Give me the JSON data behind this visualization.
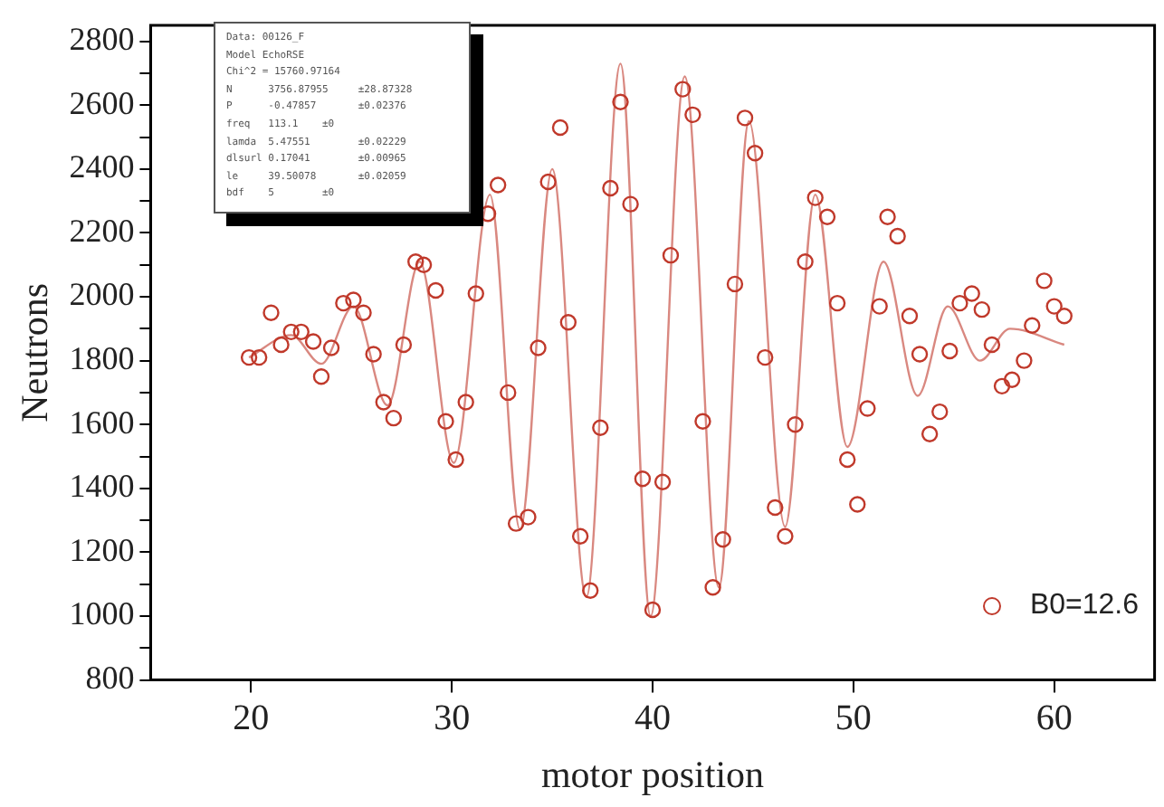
{
  "chart_data": {
    "type": "scatter",
    "xlabel": "motor position",
    "ylabel": "Neutrons",
    "xlim": [
      15,
      65
    ],
    "ylim": [
      800,
      2850
    ],
    "xticks": [
      20,
      30,
      40,
      50,
      60
    ],
    "yticks": [
      800,
      {
        "value": 900,
        "label": null
      },
      1000,
      {
        "value": 1100,
        "label": null
      },
      1200,
      {
        "value": 1300,
        "label": null
      },
      1400,
      {
        "value": 1500,
        "label": null
      },
      1600,
      {
        "value": 1700,
        "label": null
      },
      1800,
      {
        "value": 1900,
        "label": null
      },
      2000,
      {
        "value": 2100,
        "label": null
      },
      2200,
      {
        "value": 2300,
        "label": null
      },
      2400,
      {
        "value": 2500,
        "label": null
      },
      2600,
      {
        "value": 2700,
        "label": null
      },
      2800
    ],
    "grid": false,
    "legend": "bottom right",
    "annotations": [
      "Data: 00126_F",
      "Model EchoRSE",
      "Chi^2 = 15760.97164",
      "N      3756.87955     ±28.87328",
      "P      -0.47857       ±0.02376",
      "freq   113.1    ±0",
      "lamda  5.47551        ±0.02229",
      "dlsurl 0.17041        ±0.00965",
      "le     39.50078       ±0.02059",
      "bdf    5        ±0"
    ],
    "series": [
      {
        "name": "B0=12.6",
        "color": "#c0392b",
        "marker": "circle",
        "x": [
          19.9,
          20.4,
          21.0,
          21.5,
          22.0,
          22.5,
          23.1,
          23.5,
          24.0,
          24.6,
          25.1,
          25.6,
          26.1,
          26.6,
          27.1,
          27.6,
          28.2,
          28.6,
          29.2,
          29.7,
          30.2,
          30.7,
          31.2,
          31.8,
          32.3,
          32.8,
          33.2,
          33.8,
          34.3,
          34.8,
          35.4,
          35.8,
          36.4,
          36.9,
          37.4,
          37.9,
          38.4,
          38.9,
          39.5,
          40.0,
          40.5,
          40.9,
          41.5,
          42.0,
          42.5,
          43.0,
          43.5,
          44.1,
          44.6,
          45.1,
          45.6,
          46.1,
          46.6,
          47.1,
          47.6,
          48.1,
          48.7,
          49.2,
          49.7,
          50.2,
          50.7,
          51.3,
          51.7,
          52.2,
          52.8,
          53.3,
          53.8,
          54.3,
          54.8,
          55.3,
          55.9,
          56.4,
          56.9,
          57.4,
          57.9,
          58.5,
          58.9,
          59.5,
          60.0,
          60.5
        ],
        "values": [
          1810,
          1810,
          1950,
          1850,
          1890,
          1890,
          1860,
          1750,
          1840,
          1980,
          1990,
          1950,
          1820,
          1670,
          1620,
          1850,
          2110,
          2100,
          2020,
          1610,
          1490,
          1670,
          2010,
          2260,
          2350,
          1700,
          1290,
          1310,
          1840,
          2360,
          2530,
          1920,
          1250,
          1080,
          1590,
          2340,
          2610,
          2290,
          1430,
          1020,
          1420,
          2130,
          2650,
          2570,
          1610,
          1090,
          1240,
          2040,
          2560,
          2450,
          1810,
          1340,
          1250,
          1600,
          2110,
          2310,
          2250,
          1980,
          1490,
          1350,
          1650,
          1970,
          2250,
          2190,
          1940,
          1820,
          1570,
          1640,
          1830,
          1980,
          2010,
          1960,
          1850,
          1720,
          1740,
          1800,
          1910,
          2050,
          1970,
          1940
        ]
      },
      {
        "type": "line",
        "color": "#d98880",
        "x": [
          19.9,
          22.0,
          23.5,
          25.1,
          26.8,
          28.4,
          30.1,
          31.9,
          33.4,
          35.0,
          36.7,
          38.4,
          39.9,
          41.6,
          43.3,
          44.8,
          46.6,
          48.1,
          49.7,
          51.5,
          53.2,
          54.7,
          56.3,
          57.8,
          60.5
        ],
        "values": [
          1810,
          1880,
          1790,
          1970,
          1660,
          2110,
          1480,
          2320,
          1270,
          2400,
          1060,
          2730,
          1000,
          2690,
          1090,
          2550,
          1280,
          2320,
          1530,
          2110,
          1690,
          1970,
          1800,
          1900,
          1850
        ]
      }
    ]
  }
}
